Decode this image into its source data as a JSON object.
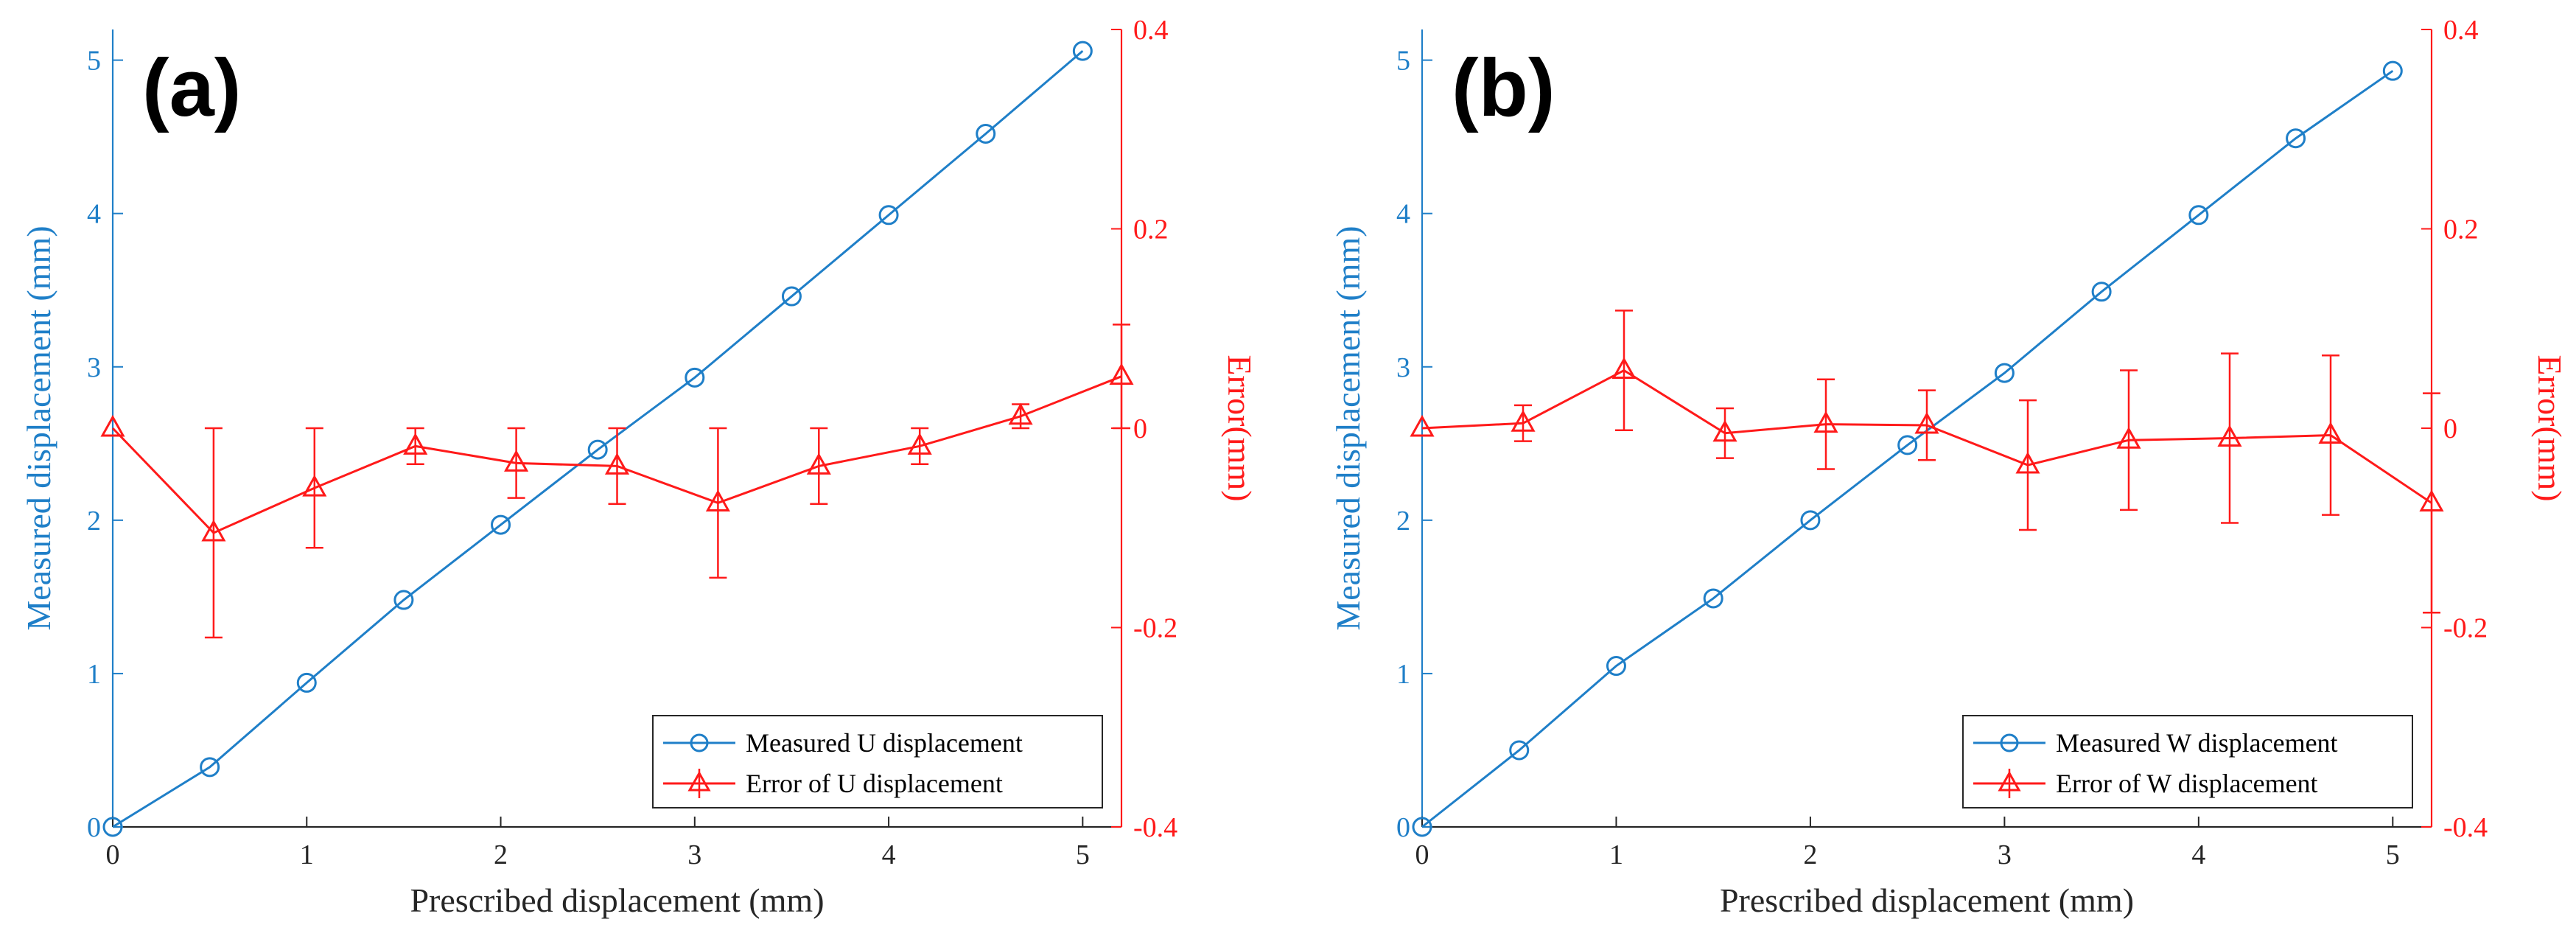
{
  "chart_data": [
    {
      "type": "line",
      "panel_label": "(a)",
      "xlabel": "Prescribed displacement (mm)",
      "ylabel_left": "Measured displacement (mm)",
      "ylabel_right": "Error(mm)",
      "xlim": [
        0,
        5.2
      ],
      "ylim_left": [
        0,
        5.2
      ],
      "ylim_right": [
        -0.4,
        0.4
      ],
      "x_ticks": [
        "0",
        "1",
        "2",
        "3",
        "4",
        "5"
      ],
      "y_left_ticks": [
        "0",
        "1",
        "2",
        "3",
        "4",
        "5"
      ],
      "y_right_ticks": [
        "-0.4",
        "-0.2",
        "0",
        "0.2",
        "0.4"
      ],
      "legend_position": "bottom-right",
      "series": [
        {
          "name": "Measured U displacement",
          "axis": "left",
          "color": "#1f7fc8",
          "marker": "circle",
          "x": [
            0,
            0.5,
            1,
            1.5,
            2,
            2.5,
            3,
            3.5,
            4,
            4.5,
            5
          ],
          "y": [
            0,
            0.39,
            0.94,
            1.48,
            1.97,
            2.46,
            2.93,
            3.46,
            3.99,
            4.52,
            5.06
          ]
        },
        {
          "name": "Error of U displacement",
          "axis": "right",
          "color": "#ff1a1a",
          "marker": "triangle",
          "x": [
            0,
            0.52,
            1.04,
            1.56,
            2.08,
            2.6,
            3.12,
            3.64,
            4.16,
            4.68,
            5.2
          ],
          "y": [
            0.0,
            -0.105,
            -0.06,
            -0.018,
            -0.035,
            -0.038,
            -0.075,
            -0.038,
            -0.018,
            0.012,
            0.052
          ],
          "err": [
            0.0,
            0.105,
            0.06,
            0.018,
            0.035,
            0.038,
            0.075,
            0.038,
            0.018,
            0.012,
            0.052
          ]
        }
      ]
    },
    {
      "type": "line",
      "panel_label": "(b)",
      "xlabel": "Prescribed displacement (mm)",
      "ylabel_left": "Measured displacement (mm)",
      "ylabel_right": "Error(mm)",
      "xlim": [
        0,
        5.2
      ],
      "ylim_left": [
        0,
        5.2
      ],
      "ylim_right": [
        -0.4,
        0.4
      ],
      "x_ticks": [
        "0",
        "1",
        "2",
        "3",
        "4",
        "5"
      ],
      "y_left_ticks": [
        "0",
        "1",
        "2",
        "3",
        "4",
        "5"
      ],
      "y_right_ticks": [
        "-0.4",
        "-0.2",
        "0",
        "0.2",
        "0.4"
      ],
      "legend_position": "bottom-right",
      "series": [
        {
          "name": "Measured W displacement",
          "axis": "left",
          "color": "#1f7fc8",
          "marker": "circle",
          "x": [
            0,
            0.5,
            1,
            1.5,
            2,
            2.5,
            3,
            3.5,
            4,
            4.5,
            5
          ],
          "y": [
            0,
            0.5,
            1.05,
            1.49,
            2.0,
            2.49,
            2.96,
            3.49,
            3.99,
            4.49,
            4.93
          ]
        },
        {
          "name": "Error of W displacement",
          "axis": "right",
          "color": "#ff1a1a",
          "marker": "triangle",
          "x": [
            0,
            0.52,
            1.04,
            1.56,
            2.08,
            2.6,
            3.12,
            3.64,
            4.16,
            4.68,
            5.2
          ],
          "y": [
            0.0,
            0.005,
            0.058,
            -0.005,
            0.004,
            0.003,
            -0.037,
            -0.012,
            -0.01,
            -0.007,
            -0.075
          ],
          "err": [
            0.0,
            0.018,
            0.06,
            0.025,
            0.045,
            0.035,
            0.065,
            0.07,
            0.085,
            0.08,
            0.11
          ]
        }
      ]
    }
  ]
}
